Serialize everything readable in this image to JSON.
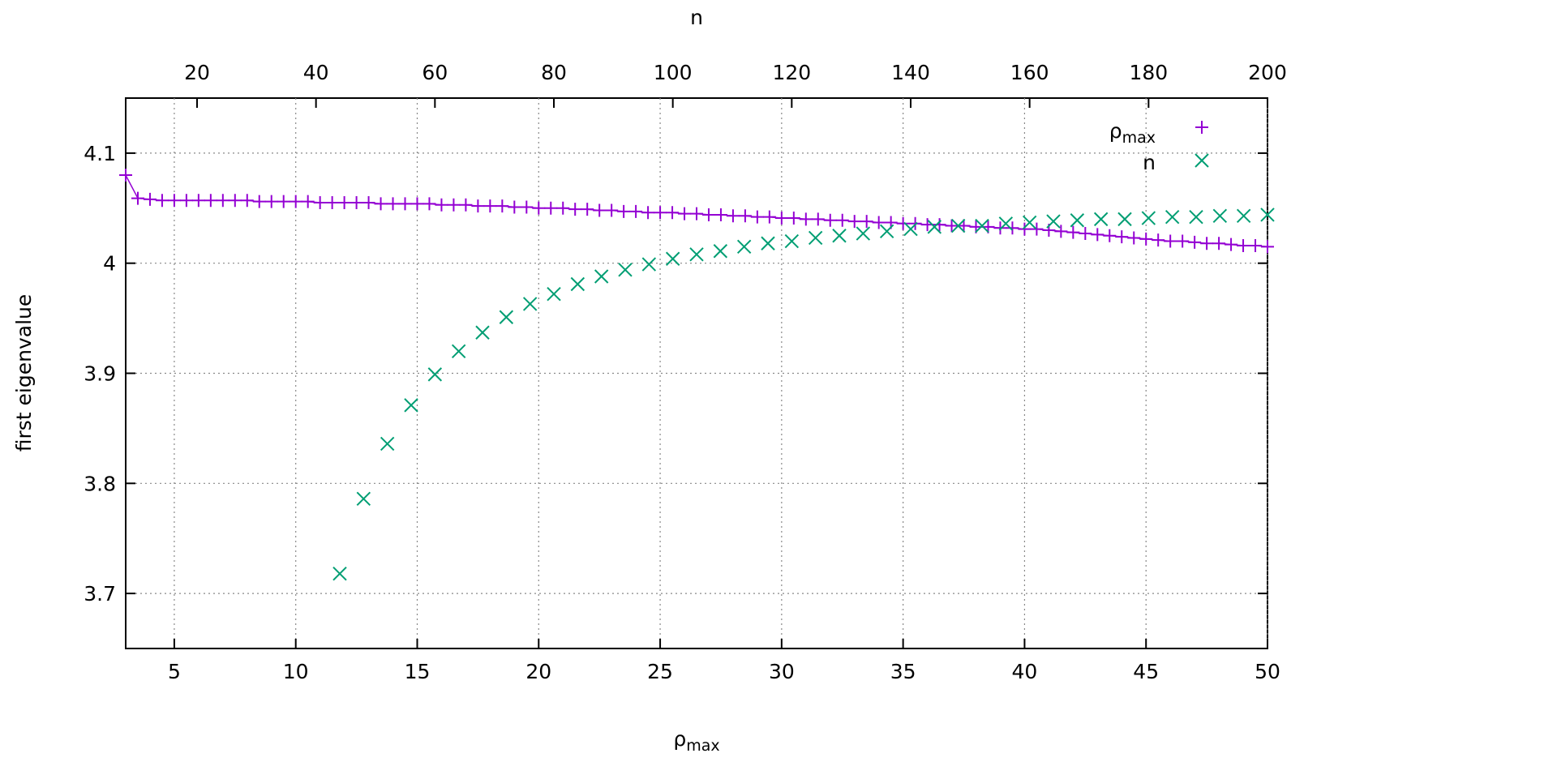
{
  "chart_data": {
    "type": "scatter",
    "title": "",
    "xlabel": {
      "main": "ρ",
      "sub": "max"
    },
    "x2label": "n",
    "ylabel": "first eigenvalue",
    "xlim": [
      3,
      50
    ],
    "x2lim": [
      8,
      200
    ],
    "ylim": [
      3.65,
      4.15
    ],
    "xticks": [
      5,
      10,
      15,
      20,
      25,
      30,
      35,
      40,
      45,
      50
    ],
    "x2ticks": [
      20,
      40,
      60,
      80,
      100,
      120,
      140,
      160,
      180,
      200
    ],
    "yticks": [
      3.7,
      3.8,
      3.9,
      4,
      4.1
    ],
    "ytick_labels": [
      "3.7",
      "3.8",
      "3.9",
      "4",
      "4.1"
    ],
    "grid": true,
    "legend_position": "top-right",
    "series": [
      {
        "name": {
          "main": "ρ",
          "sub": "max"
        },
        "marker": "plus",
        "color": "#9400d3",
        "axis": "bottom",
        "x": [
          3.0,
          3.5,
          4.0,
          4.5,
          5.0,
          5.5,
          6.0,
          6.5,
          7.0,
          7.5,
          8.0,
          8.5,
          9.0,
          9.5,
          10.0,
          10.5,
          11.0,
          11.5,
          12.0,
          12.5,
          13.0,
          13.5,
          14.0,
          14.5,
          15.0,
          15.5,
          16.0,
          16.5,
          17.0,
          17.5,
          18.0,
          18.5,
          19.0,
          19.5,
          20.0,
          20.5,
          21.0,
          21.5,
          22.0,
          22.5,
          23.0,
          23.5,
          24.0,
          24.5,
          25.0,
          25.5,
          26.0,
          26.5,
          27.0,
          27.5,
          28.0,
          28.5,
          29.0,
          29.5,
          30.0,
          30.5,
          31.0,
          31.5,
          32.0,
          32.5,
          33.0,
          33.5,
          34.0,
          34.5,
          35.0,
          35.5,
          36.0,
          36.5,
          37.0,
          37.5,
          38.0,
          38.5,
          39.0,
          39.5,
          40.0,
          40.5,
          41.0,
          41.5,
          42.0,
          42.5,
          43.0,
          43.5,
          44.0,
          44.5,
          45.0,
          45.5,
          46.0,
          46.5,
          47.0,
          47.5,
          48.0,
          48.5,
          49.0,
          49.5,
          50.0
        ],
        "y": [
          4.08,
          4.059,
          4.058,
          4.057,
          4.057,
          4.057,
          4.057,
          4.057,
          4.057,
          4.057,
          4.057,
          4.056,
          4.056,
          4.056,
          4.056,
          4.056,
          4.055,
          4.055,
          4.055,
          4.055,
          4.055,
          4.054,
          4.054,
          4.054,
          4.054,
          4.054,
          4.053,
          4.053,
          4.053,
          4.052,
          4.052,
          4.052,
          4.051,
          4.051,
          4.05,
          4.05,
          4.05,
          4.049,
          4.049,
          4.048,
          4.048,
          4.047,
          4.047,
          4.046,
          4.046,
          4.046,
          4.045,
          4.045,
          4.044,
          4.044,
          4.043,
          4.043,
          4.042,
          4.042,
          4.041,
          4.041,
          4.04,
          4.04,
          4.039,
          4.039,
          4.038,
          4.038,
          4.037,
          4.037,
          4.036,
          4.036,
          4.035,
          4.035,
          4.034,
          4.034,
          4.033,
          4.033,
          4.032,
          4.032,
          4.031,
          4.031,
          4.03,
          4.029,
          4.028,
          4.027,
          4.026,
          4.025,
          4.024,
          4.023,
          4.022,
          4.021,
          4.02,
          4.02,
          4.019,
          4.018,
          4.018,
          4.017,
          4.016,
          4.016,
          4.015
        ]
      },
      {
        "name": "n",
        "marker": "cross",
        "color": "#009e73",
        "axis": "top",
        "x": [
          44,
          48,
          52,
          56,
          60,
          64,
          68,
          72,
          76,
          80,
          84,
          88,
          92,
          96,
          100,
          104,
          108,
          112,
          116,
          120,
          124,
          128,
          132,
          136,
          140,
          144,
          148,
          152,
          156,
          160,
          164,
          168,
          172,
          176,
          180,
          184,
          188,
          192,
          196,
          200
        ],
        "y": [
          3.718,
          3.786,
          3.836,
          3.871,
          3.899,
          3.92,
          3.937,
          3.951,
          3.963,
          3.972,
          3.981,
          3.988,
          3.994,
          3.999,
          4.004,
          4.008,
          4.011,
          4.015,
          4.018,
          4.02,
          4.023,
          4.025,
          4.027,
          4.029,
          4.031,
          4.033,
          4.034,
          4.034,
          4.036,
          4.037,
          4.038,
          4.039,
          4.04,
          4.04,
          4.041,
          4.042,
          4.042,
          4.043,
          4.043,
          4.044
        ]
      }
    ]
  }
}
